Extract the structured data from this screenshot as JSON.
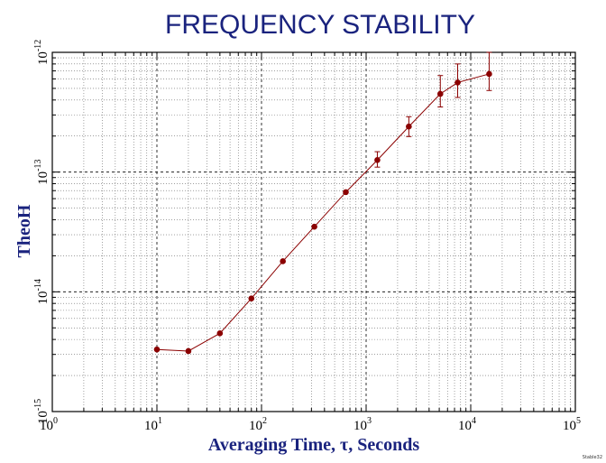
{
  "chart_data": {
    "type": "scatter",
    "title": "FREQUENCY STABILITY",
    "xlabel": "Averaging Time, τ, Seconds",
    "ylabel": "TheoH",
    "xscale": "log",
    "yscale": "log",
    "xlim": [
      1,
      100000
    ],
    "ylim": [
      1e-15,
      1e-12
    ],
    "x_ticks": [
      {
        "base": "10",
        "exp": "0",
        "value": 1
      },
      {
        "base": "10",
        "exp": "1",
        "value": 10
      },
      {
        "base": "10",
        "exp": "2",
        "value": 100
      },
      {
        "base": "10",
        "exp": "3",
        "value": 1000
      },
      {
        "base": "10",
        "exp": "4",
        "value": 10000
      },
      {
        "base": "10",
        "exp": "5",
        "value": 100000
      }
    ],
    "y_ticks": [
      {
        "base": "10",
        "exp": "-15",
        "value": 1e-15
      },
      {
        "base": "10",
        "exp": "-14",
        "value": 1e-14
      },
      {
        "base": "10",
        "exp": "-13",
        "value": 1e-13
      },
      {
        "base": "10",
        "exp": "-12",
        "value": 1e-12
      }
    ],
    "grid": true,
    "series": [
      {
        "name": "TheoH",
        "color": "#8b0000",
        "points": [
          {
            "x": 10,
            "y": 3.3e-15,
            "err_low": null,
            "err_high": null
          },
          {
            "x": 20,
            "y": 3.2e-15,
            "err_low": null,
            "err_high": null
          },
          {
            "x": 40,
            "y": 4.5e-15,
            "err_low": null,
            "err_high": null
          },
          {
            "x": 80,
            "y": 8.8e-15,
            "err_low": null,
            "err_high": null
          },
          {
            "x": 160,
            "y": 1.8e-14,
            "err_low": null,
            "err_high": null
          },
          {
            "x": 320,
            "y": 3.5e-14,
            "err_low": null,
            "err_high": null
          },
          {
            "x": 640,
            "y": 6.8e-14,
            "err_low": null,
            "err_high": null
          },
          {
            "x": 1280,
            "y": 1.26e-13,
            "err_low": 1.1e-13,
            "err_high": 1.48e-13
          },
          {
            "x": 2560,
            "y": 2.4e-13,
            "err_low": 1.98e-13,
            "err_high": 2.9e-13
          },
          {
            "x": 5120,
            "y": 4.5e-13,
            "err_low": 3.5e-13,
            "err_high": 6.4e-13
          },
          {
            "x": 7500,
            "y": 5.6e-13,
            "err_low": 4.2e-13,
            "err_high": 8e-13
          },
          {
            "x": 15000,
            "y": 6.6e-13,
            "err_low": 4.8e-13,
            "err_high": 1e-12
          }
        ]
      }
    ]
  },
  "watermark": "Stable32"
}
